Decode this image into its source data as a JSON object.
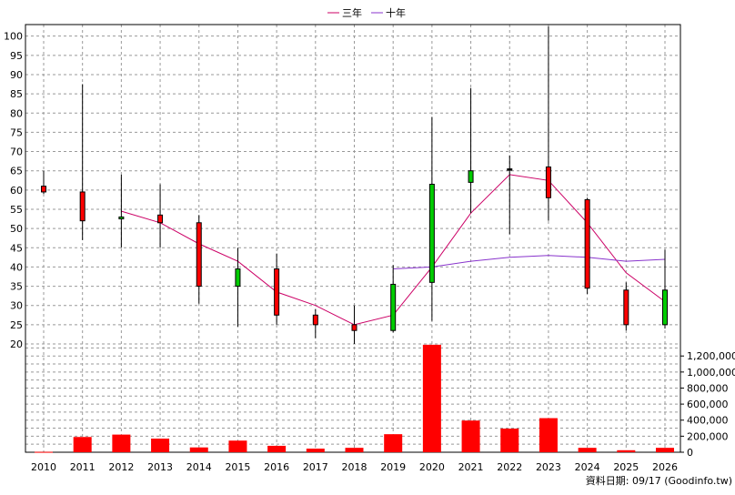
{
  "legend": [
    {
      "label": "三年",
      "color": "#cc0066"
    },
    {
      "label": "十年",
      "color": "#8833cc"
    }
  ],
  "footer": "資料日期: 09/17  (Goodinfo.tw)",
  "chart_data": {
    "type": "candlestick",
    "price_axis": {
      "min": 20,
      "max": 103,
      "ticks": [
        20,
        25,
        30,
        35,
        40,
        45,
        50,
        55,
        60,
        65,
        70,
        75,
        80,
        85,
        90,
        95,
        100
      ]
    },
    "volume_axis": {
      "min": 0,
      "max": 1350000,
      "ticks": [
        0,
        200000,
        400000,
        600000,
        800000,
        1000000,
        1200000
      ],
      "tick_labels": [
        "0",
        "200,000",
        "400,000",
        "600,000",
        "800,000",
        "1,000,000",
        "1,200,000"
      ]
    },
    "years": [
      "2010",
      "2011",
      "2012",
      "2013",
      "2014",
      "2015",
      "2016",
      "2017",
      "2018",
      "2019",
      "2020",
      "2021",
      "2022",
      "2023",
      "2024",
      "2025",
      "2026"
    ],
    "candles": [
      {
        "year": "2010",
        "open": 59.5,
        "close": 61,
        "high": 65,
        "low": 59
      },
      {
        "year": "2011",
        "open": 52,
        "close": 59.5,
        "high": 87.5,
        "low": 47
      },
      {
        "year": "2012",
        "open": 53,
        "close": 52.5,
        "high": 64,
        "low": 45
      },
      {
        "year": "2013",
        "open": 51.5,
        "close": 53.5,
        "high": 61.5,
        "low": 45
      },
      {
        "year": "2014",
        "open": 35,
        "close": 51.5,
        "high": 53.5,
        "low": 30.5
      },
      {
        "year": "2015",
        "open": 39.5,
        "close": 35,
        "high": 45,
        "low": 24.5
      },
      {
        "year": "2016",
        "open": 27.5,
        "close": 39.5,
        "high": 43.5,
        "low": 25
      },
      {
        "year": "2017",
        "open": 25,
        "close": 27.5,
        "high": 29,
        "low": 21.5
      },
      {
        "year": "2018",
        "open": 23.5,
        "close": 25,
        "high": 30,
        "low": 20
      },
      {
        "year": "2019",
        "open": 35.5,
        "close": 23.5,
        "high": 40.5,
        "low": 23
      },
      {
        "year": "2020",
        "open": 61.5,
        "close": 36,
        "high": 79,
        "low": 26
      },
      {
        "year": "2021",
        "open": 65,
        "close": 62,
        "high": 86.5,
        "low": 54
      },
      {
        "year": "2022",
        "open": 65.5,
        "close": 65.5,
        "high": 69,
        "low": 48.5
      },
      {
        "year": "2023",
        "open": 58,
        "close": 66,
        "high": 102.5,
        "low": 52
      },
      {
        "year": "2024",
        "open": 34.5,
        "close": 57.5,
        "high": 58,
        "low": 33
      },
      {
        "year": "2025",
        "open": 25,
        "close": 34,
        "high": 36,
        "low": 23.5
      },
      {
        "year": "2026",
        "open": 34,
        "close": 25,
        "high": 44.5,
        "low": 24
      }
    ],
    "volumes": [
      5000,
      190000,
      220000,
      170000,
      60000,
      145000,
      80000,
      45000,
      55000,
      225000,
      1340000,
      395000,
      295000,
      425000,
      55000,
      25000,
      55000
    ],
    "series": [
      {
        "name": "三年",
        "color": "#cc0066",
        "start_index": 2,
        "values": [
          54.5,
          51.5,
          46,
          41.5,
          33.5,
          30,
          25,
          27.5,
          40,
          54,
          64,
          62.5,
          51.5,
          38.5,
          31
        ]
      },
      {
        "name": "十年",
        "color": "#8833cc",
        "start_index": 9,
        "values": [
          39.5,
          40,
          41.5,
          42.5,
          43,
          42.5,
          41.5,
          42
        ]
      }
    ],
    "up_color": "#ff0000",
    "down_color": "#00cc00",
    "grid": true
  }
}
